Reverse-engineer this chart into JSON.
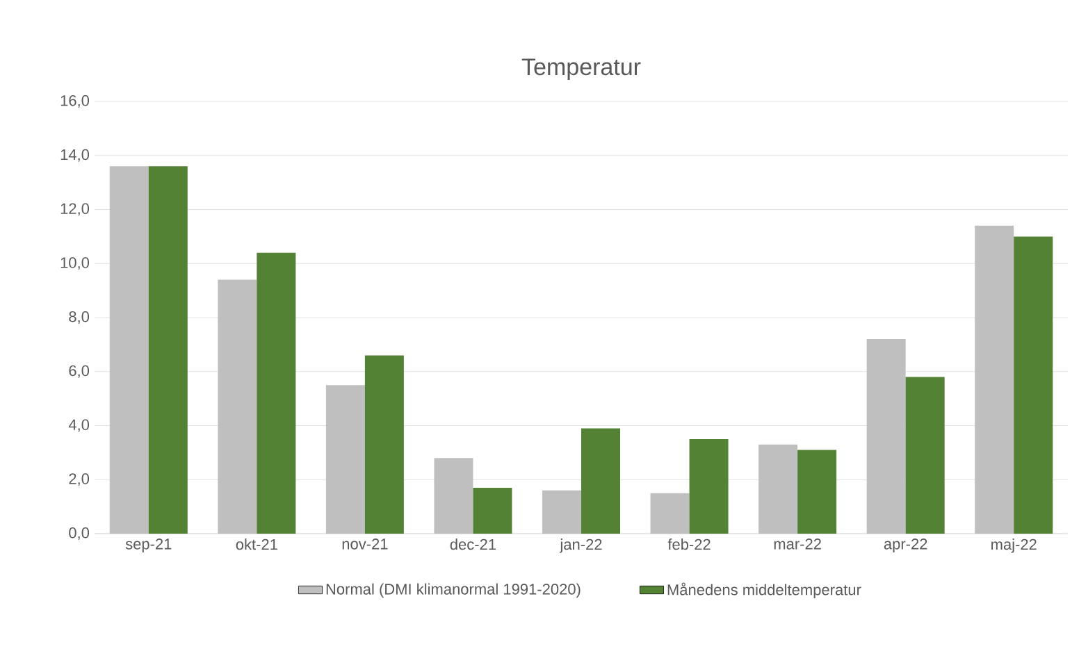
{
  "chart_data": {
    "type": "bar",
    "title": "Temperatur",
    "categories": [
      "sep-21",
      "okt-21",
      "nov-21",
      "dec-21",
      "jan-22",
      "feb-22",
      "mar-22",
      "apr-22",
      "maj-22"
    ],
    "series": [
      {
        "name": "Normal (DMI klimanormal 1991-2020)",
        "color": "#bfbfbf",
        "values": [
          13.6,
          9.4,
          5.5,
          2.8,
          1.6,
          1.5,
          3.3,
          7.2,
          11.4
        ]
      },
      {
        "name": "Månedens middeltemperatur",
        "color": "#548235",
        "values": [
          13.6,
          10.4,
          6.6,
          1.7,
          3.9,
          3.5,
          3.1,
          5.8,
          11.0
        ]
      }
    ],
    "ylim": [
      0,
      16
    ],
    "yticks": [
      {
        "value": 0,
        "label": "0,0"
      },
      {
        "value": 2,
        "label": "2,0"
      },
      {
        "value": 4,
        "label": "4,0"
      },
      {
        "value": 6,
        "label": "6,0"
      },
      {
        "value": 8,
        "label": "8,0"
      },
      {
        "value": 10,
        "label": "10,0"
      },
      {
        "value": 12,
        "label": "12,0"
      },
      {
        "value": 14,
        "label": "14,0"
      },
      {
        "value": 16,
        "label": "16,0"
      }
    ],
    "grid": "y",
    "legend": "bottom"
  }
}
